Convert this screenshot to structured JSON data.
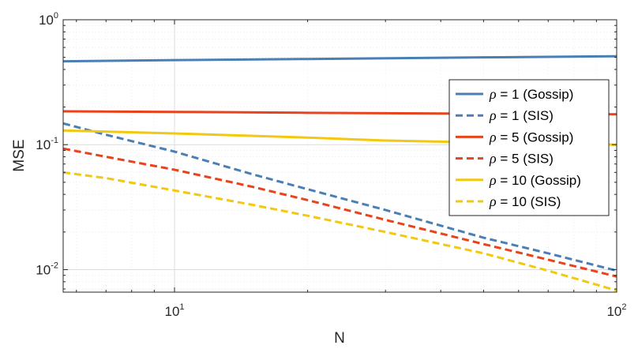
{
  "chart_data": {
    "type": "line",
    "title": "",
    "xlabel": "N",
    "ylabel": "MSE",
    "xscale": "log",
    "yscale": "log",
    "xlim": [
      5.6,
      100
    ],
    "ylim": [
      0.0066,
      1
    ],
    "grid": true,
    "minor_grid": true,
    "legend_position": "right",
    "x_ticks": [
      {
        "value": 10,
        "base": "10",
        "exp": "1"
      },
      {
        "value": 100,
        "base": "10",
        "exp": "2"
      }
    ],
    "y_ticks": [
      {
        "value": 0.01,
        "base": "10",
        "exp": "-2"
      },
      {
        "value": 0.1,
        "base": "10",
        "exp": "-1"
      },
      {
        "value": 1,
        "base": "10",
        "exp": "0"
      }
    ],
    "series": [
      {
        "name": "ρ = 1 (Gossip)",
        "legend_symbol": "ρ",
        "legend_rest": " = 1 (Gossip)",
        "color": "#4a7fb5",
        "dash": "solid",
        "x": [
          5.6,
          10,
          20,
          50,
          100
        ],
        "y": [
          0.465,
          0.475,
          0.485,
          0.5,
          0.51
        ]
      },
      {
        "name": "ρ = 1 (SIS)",
        "legend_symbol": "ρ",
        "legend_rest": " = 1 (SIS)",
        "color": "#4a7fb5",
        "dash": "dashed",
        "x": [
          5.6,
          7,
          10,
          15,
          20,
          30,
          50,
          70,
          100
        ],
        "y": [
          0.148,
          0.12,
          0.088,
          0.058,
          0.044,
          0.03,
          0.018,
          0.0135,
          0.0098
        ]
      },
      {
        "name": "ρ = 5 (Gossip)",
        "legend_symbol": "ρ",
        "legend_rest": " = 5 (Gossip)",
        "color": "#e8431c",
        "dash": "solid",
        "x": [
          5.6,
          10,
          20,
          50,
          100
        ],
        "y": [
          0.185,
          0.183,
          0.18,
          0.177,
          0.175
        ]
      },
      {
        "name": "ρ = 5 (SIS)",
        "legend_symbol": "ρ",
        "legend_rest": " = 5 (SIS)",
        "color": "#e8431c",
        "dash": "dashed",
        "x": [
          5.6,
          7,
          10,
          15,
          20,
          30,
          50,
          70,
          100
        ],
        "y": [
          0.093,
          0.08,
          0.063,
          0.046,
          0.036,
          0.025,
          0.016,
          0.012,
          0.0088
        ]
      },
      {
        "name": "ρ = 10 (Gossip)",
        "legend_symbol": "ρ",
        "legend_rest": " = 10 (Gossip)",
        "color": "#f2c811",
        "dash": "solid",
        "x": [
          5.6,
          10,
          20,
          30,
          50,
          100
        ],
        "y": [
          0.13,
          0.123,
          0.114,
          0.108,
          0.104,
          0.1
        ]
      },
      {
        "name": "ρ = 10 (SIS)",
        "legend_symbol": "ρ",
        "legend_rest": " = 10 (SIS)",
        "color": "#f2c811",
        "dash": "dashed",
        "x": [
          5.6,
          7,
          10,
          15,
          20,
          30,
          50,
          70,
          100
        ],
        "y": [
          0.06,
          0.054,
          0.043,
          0.033,
          0.027,
          0.02,
          0.0135,
          0.0098,
          0.0068
        ]
      }
    ]
  }
}
